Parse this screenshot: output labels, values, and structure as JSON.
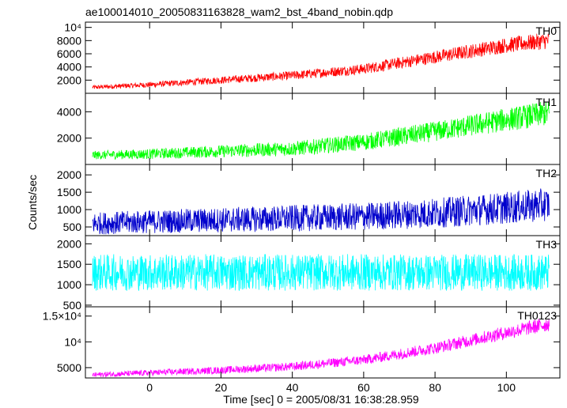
{
  "title": "ae100014010_20050831163828_wam2_bst_4band_nobin.qdp",
  "ylabel": "Counts/sec",
  "xlabel": "Time [sec] 0 = 2005/08/31 16:38:28.959",
  "x_ticks": [
    0,
    20,
    40,
    60,
    80,
    100
  ],
  "chart_data": {
    "type": "line",
    "title": "ae100014010_20050831163828_wam2_bst_4band_nobin.qdp",
    "xlabel": "Time [sec] 0 = 2005/08/31 16:38:28.959",
    "ylabel": "Counts/sec",
    "xlim": [
      -18,
      115
    ],
    "x_ticks": [
      0,
      20,
      40,
      60,
      80,
      100
    ],
    "x_range": [
      -16,
      112
    ],
    "grid": false,
    "series": [
      {
        "name": "TH0",
        "color": "#ff0000",
        "ylim": [
          0,
          10800
        ],
        "y_ticks": [
          2000,
          4000,
          6000,
          8000,
          10000
        ],
        "y_tick_labels": [
          "2000",
          "4000",
          "6000",
          "8000",
          "10⁴"
        ],
        "trend": [
          [
            -16,
            900
          ],
          [
            0,
            1300
          ],
          [
            20,
            2000
          ],
          [
            40,
            2700
          ],
          [
            60,
            3700
          ],
          [
            80,
            5500
          ],
          [
            100,
            7300
          ],
          [
            112,
            8000
          ]
        ],
        "noise": [
          [
            -16,
            200
          ],
          [
            60,
            500
          ],
          [
            112,
            800
          ]
        ]
      },
      {
        "name": "TH1",
        "color": "#00ff00",
        "ylim": [
          0,
          5400
        ],
        "y_ticks": [
          2000,
          4000
        ],
        "y_tick_labels": [
          "2000",
          "4000"
        ],
        "trend": [
          [
            -16,
            700
          ],
          [
            0,
            800
          ],
          [
            20,
            1000
          ],
          [
            40,
            1200
          ],
          [
            60,
            1700
          ],
          [
            80,
            2500
          ],
          [
            100,
            3400
          ],
          [
            112,
            3900
          ]
        ],
        "noise": [
          [
            -16,
            200
          ],
          [
            60,
            400
          ],
          [
            112,
            600
          ]
        ]
      },
      {
        "name": "TH2",
        "color": "#0000cc",
        "ylim": [
          250,
          2300
        ],
        "y_ticks": [
          500,
          1000,
          1500,
          2000
        ],
        "y_tick_labels": [
          "500",
          "1000",
          "1500",
          "2000"
        ],
        "trend": [
          [
            -16,
            600
          ],
          [
            0,
            650
          ],
          [
            20,
            700
          ],
          [
            40,
            750
          ],
          [
            60,
            800
          ],
          [
            80,
            900
          ],
          [
            100,
            1050
          ],
          [
            112,
            1150
          ]
        ],
        "noise": [
          [
            -16,
            200
          ],
          [
            60,
            250
          ],
          [
            112,
            300
          ]
        ]
      },
      {
        "name": "TH3",
        "color": "#00ffff",
        "ylim": [
          460,
          2200
        ],
        "y_ticks": [
          500,
          1000,
          1500,
          2000
        ],
        "y_tick_labels": [
          "500",
          "1000",
          "1500",
          "2000"
        ],
        "trend": [
          [
            -16,
            1300
          ],
          [
            112,
            1300
          ]
        ],
        "noise": [
          [
            -16,
            280
          ],
          [
            112,
            280
          ]
        ]
      },
      {
        "name": "TH0123",
        "color": "#ff00ff",
        "ylim": [
          3000,
          16800
        ],
        "y_ticks": [
          5000,
          10000,
          15000
        ],
        "y_tick_labels": [
          "5000",
          "10⁴",
          "1.5×10⁴"
        ],
        "trend": [
          [
            -16,
            3600
          ],
          [
            0,
            4000
          ],
          [
            20,
            4500
          ],
          [
            40,
            5200
          ],
          [
            60,
            6500
          ],
          [
            80,
            8800
          ],
          [
            100,
            11800
          ],
          [
            112,
            13500
          ]
        ],
        "noise": [
          [
            -16,
            300
          ],
          [
            60,
            600
          ],
          [
            112,
            900
          ]
        ]
      }
    ]
  }
}
